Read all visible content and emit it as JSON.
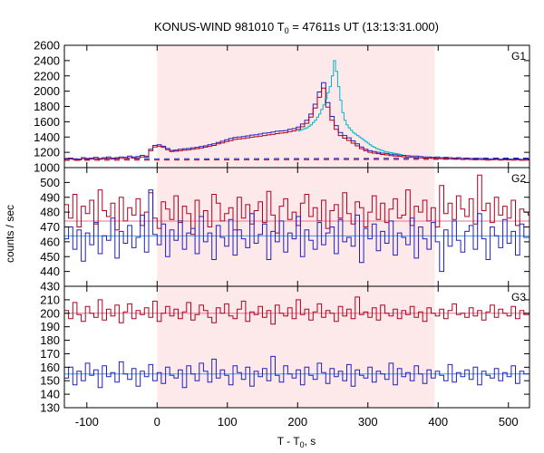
{
  "chart_data": {
    "type": "line",
    "title_main": "KONUS-WIND 981010 T",
    "title_sub": "0",
    "title_rest": " = 47611s UT (13:13:31.000)",
    "xlabel_main": "T - T",
    "xlabel_sub": "0",
    "xlabel_rest": ", s",
    "ylabel": "counts / sec",
    "xlim": [
      -132,
      530
    ],
    "xticks": [
      -100,
      0,
      100,
      200,
      300,
      400,
      500
    ],
    "xtick_labels": [
      "-100",
      "0",
      "100",
      "200",
      "300",
      "400",
      "500"
    ],
    "shaded_interval": [
      0,
      395
    ],
    "colors": {
      "red": "#b0001e",
      "blue": "#2020c0",
      "cyan": "#00b8c8",
      "pink": "#e87090",
      "lightblue": "#3aa0e0",
      "shade": "#fde8ea"
    },
    "panels": [
      {
        "label": "G1",
        "ylim": [
          1000,
          2600
        ],
        "yticks": [
          1000,
          1200,
          1400,
          1600,
          1800,
          2000,
          2200,
          2400,
          2600
        ],
        "ytick_labels": [
          "1000",
          "1200",
          "1400",
          "1600",
          "1800",
          "2000",
          "2200",
          "2400",
          "2600"
        ],
        "background": [
          {
            "name": "red-background",
            "y": [
              1095,
              1112
            ]
          },
          {
            "name": "blue-background",
            "y": [
              1112,
              1125
            ]
          }
        ],
        "series": [
          {
            "name": "blue-profile",
            "step": 6.0,
            "x0": -132,
            "values": [
              1120,
              1125,
              1115,
              1110,
              1130,
              1120,
              1125,
              1135,
              1120,
              1130,
              1140,
              1125,
              1130,
              1140,
              1135,
              1150,
              1140,
              1145,
              1160,
              1150,
              1240,
              1290,
              1300,
              1280,
              1250,
              1225,
              1230,
              1240,
              1245,
              1250,
              1260,
              1265,
              1275,
              1285,
              1300,
              1310,
              1330,
              1345,
              1365,
              1380,
              1395,
              1400,
              1405,
              1415,
              1425,
              1430,
              1440,
              1450,
              1455,
              1465,
              1475,
              1480,
              1485,
              1500,
              1510,
              1530,
              1570,
              1620,
              1700,
              1830,
              1990,
              2110,
              1850,
              1670,
              1550,
              1460,
              1420,
              1390,
              1350,
              1310,
              1270,
              1240,
              1220,
              1210,
              1200,
              1190,
              1185,
              1175,
              1170,
              1165,
              1160,
              1155,
              1150,
              1150,
              1145,
              1140,
              1140,
              1135,
              1140,
              1130,
              1135,
              1130,
              1125,
              1130,
              1120,
              1125,
              1120,
              1115,
              1120,
              1118,
              1110,
              1115,
              1120,
              1110,
              1115,
              1112,
              1110,
              1115,
              1108,
              1110,
              1112
            ]
          },
          {
            "name": "red-profile",
            "step": 6.0,
            "x0": -132,
            "values": [
              1110,
              1112,
              1105,
              1100,
              1115,
              1108,
              1110,
              1115,
              1108,
              1115,
              1120,
              1110,
              1115,
              1122,
              1118,
              1130,
              1125,
              1128,
              1140,
              1135,
              1220,
              1270,
              1280,
              1265,
              1235,
              1210,
              1215,
              1220,
              1228,
              1232,
              1240,
              1248,
              1256,
              1268,
              1280,
              1290,
              1310,
              1322,
              1340,
              1352,
              1368,
              1374,
              1380,
              1390,
              1398,
              1404,
              1412,
              1420,
              1428,
              1436,
              1445,
              1452,
              1458,
              1470,
              1480,
              1500,
              1535,
              1580,
              1660,
              1780,
              1920,
              2040,
              1790,
              1620,
              1500,
              1420,
              1385,
              1355,
              1320,
              1285,
              1248,
              1220,
              1200,
              1190,
              1182,
              1172,
              1166,
              1158,
              1152,
              1148,
              1142,
              1138,
              1134,
              1132,
              1128,
              1124,
              1124,
              1120,
              1122,
              1115,
              1118,
              1114,
              1110,
              1114,
              1106,
              1110,
              1106,
              1102,
              1106,
              1104,
              1098,
              1102,
              1106,
              1098,
              1102,
              1100,
              1098,
              1102,
              1096,
              1098,
              1100
            ]
          },
          {
            "name": "cyan-peak",
            "step": 3.0,
            "x0": 200,
            "values": [
              1480,
              1490,
              1500,
              1510,
              1520,
              1540,
              1560,
              1590,
              1620,
              1660,
              1700,
              1760,
              1820,
              1900,
              1980,
              2060,
              2200,
              2400,
              2260,
              2060,
              1880,
              1720,
              1620,
              1560,
              1520,
              1490,
              1460,
              1440,
              1420,
              1400,
              1380,
              1360,
              1340,
              1320,
              1300,
              1280,
              1265,
              1250,
              1240,
              1230,
              1220,
              1210,
              1205,
              1200,
              1195,
              1190,
              1185,
              1180,
              1175,
              1170
            ]
          }
        ]
      },
      {
        "label": "G2",
        "ylim": [
          430,
          510
        ],
        "yticks": [
          430,
          440,
          450,
          460,
          470,
          480,
          490,
          500
        ],
        "ytick_labels": [
          "430",
          "440",
          "450",
          "460",
          "470",
          "480",
          "490",
          "500"
        ],
        "background": [
          {
            "name": "red-background",
            "y": [
              474,
              474
            ]
          },
          {
            "name": "blue-background",
            "y": [
              464,
              464
            ]
          }
        ],
        "series": [
          {
            "name": "red-counts",
            "step": 6.0,
            "x0": -132,
            "values": [
              485,
              476,
              492,
              470,
              484,
              479,
              488,
              472,
              495,
              481,
              477,
              486,
              468,
              490,
              474,
              483,
              478,
              489,
              471,
              480,
              493,
              476,
              469,
              487,
              482,
              475,
              491,
              473,
              484,
              479,
              465,
              488,
              477,
              481,
              470,
              492,
              486,
              474,
              479,
              483,
              468,
              490,
              476,
              485,
              472,
              481,
              487,
              473,
              494,
              478,
              466,
              484,
              489,
              475,
              480,
              471,
              486,
              492,
              477,
              483,
              474,
              488,
              469,
              481,
              485,
              476,
              493,
              479,
              472,
              487,
              483,
              470,
              480,
              491,
              475,
              486,
              473,
              482,
              489,
              476,
              478,
              495,
              471,
              484,
              480,
              488,
              474,
              483,
              470,
              498,
              479,
              486,
              475,
              491,
              482,
              477,
              489,
              472,
              505,
              481,
              486,
              473,
              490,
              478,
              484,
              476,
              488,
              471,
              482,
              480,
              478
            ]
          },
          {
            "name": "blue-counts",
            "step": 6.0,
            "x0": -132,
            "values": [
              462,
              470,
              455,
              468,
              447,
              466,
              458,
              473,
              452,
              464,
              461,
              476,
              449,
              467,
              459,
              471,
              456,
              463,
              478,
              453,
              495,
              465,
              458,
              472,
              450,
              468,
              461,
              474,
              455,
              466,
              469,
              452,
              477,
              460,
              466,
              448,
              471,
              463,
              457,
              475,
              451,
              468,
              462,
              456,
              479,
              459,
              465,
              472,
              448,
              467,
              460,
              474,
              453,
              466,
              462,
              477,
              450,
              468,
              461,
              455,
              473,
              458,
              466,
              470,
              452,
              475,
              460,
              463,
              457,
              478,
              446,
              469,
              462,
              472,
              454,
              467,
              459,
              474,
              451,
              466,
              463,
              458,
              476,
              449,
              470,
              462,
              455,
              473,
              460,
              440,
              468,
              457,
              474,
              461,
              453,
              467,
              471,
              455,
              479,
              462,
              448,
              470,
              464,
              456,
              475,
              459,
              467,
              451,
              472,
              463,
              463
            ]
          }
        ]
      },
      {
        "label": "G3",
        "ylim": [
          130,
          220
        ],
        "yticks": [
          130,
          140,
          150,
          160,
          170,
          180,
          190,
          200,
          210
        ],
        "ytick_labels": [
          "130",
          "140",
          "150",
          "160",
          "170",
          "180",
          "190",
          "200",
          "210"
        ],
        "background": [
          {
            "name": "red-background",
            "y": [
              200,
              200
            ]
          },
          {
            "name": "blue-background",
            "y": [
              155,
              155
            ]
          }
        ],
        "series": [
          {
            "name": "red-counts",
            "step": 6.0,
            "x0": -132,
            "values": [
              202,
              196,
              208,
              199,
              194,
              205,
              200,
              197,
              210,
              195,
              203,
              198,
              206,
              193,
              201,
              207,
              196,
              202,
              199,
              204,
              197,
              209,
              194,
              200,
              205,
              198,
              203,
              196,
              201,
              208,
              195,
              199,
              206,
              202,
              197,
              193,
              204,
              200,
              207,
              198,
              196,
              203,
              209,
              194,
              201,
              199,
              205,
              197,
              202,
              192,
              206,
              200,
              198,
              204,
              196,
              210,
              199,
              203,
              195,
              201,
              207,
              197,
              202,
              200,
              194,
              205,
              198,
              203,
              196,
              212,
              199,
              201,
              197,
              204,
              195,
              206,
              200,
              198,
              203,
              196,
              202,
              199,
              205,
              197,
              201,
              194,
              204,
              200,
              198,
              203,
              196,
              202,
              207,
              199,
              200,
              197,
              204,
              198,
              202,
              195,
              201,
              206,
              197,
              203,
              200,
              198,
              205,
              196,
              202,
              199,
              199
            ]
          },
          {
            "name": "blue-counts",
            "step": 6.0,
            "x0": -132,
            "values": [
              152,
              160,
              147,
              157,
              150,
              163,
              154,
              158,
              145,
              161,
              153,
              156,
              149,
              164,
              155,
              151,
              159,
              146,
              157,
              153,
              162,
              150,
              156,
              148,
              160,
              154,
              152,
              158,
              145,
              161,
              155,
              150,
              163,
              157,
              149,
              166,
              152,
              158,
              154,
              147,
              161,
              156,
              151,
              160,
              146,
              157,
              153,
              159,
              150,
              168,
              154,
              149,
              161,
              155,
              152,
              158,
              147,
              160,
              154,
              151,
              163,
              156,
              148,
              159,
              153,
              157,
              150,
              162,
              146,
              158,
              154,
              152,
              160,
              149,
              157,
              155,
              151,
              163,
              147,
              159,
              153,
              156,
              150,
              161,
              155,
              148,
              158,
              152,
              157,
              154,
              150,
              162,
              149,
              156,
              153,
              158,
              151,
              160,
              147,
              157,
              154,
              152,
              159,
              150,
              156,
              153,
              161,
              148,
              157,
              155,
              155
            ]
          }
        ]
      }
    ]
  }
}
